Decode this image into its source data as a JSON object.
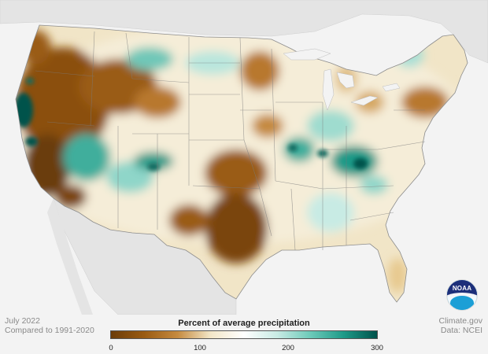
{
  "meta": {
    "date": "July 2022",
    "baseline": "Compared to 1991-2020",
    "source_site": "Climate.gov",
    "source_data": "Data: NCEI"
  },
  "legend": {
    "title": "Percent of average precipitation",
    "ticks": [
      "0",
      "100",
      "200",
      "300"
    ],
    "colors": [
      "#6b3c09",
      "#9a5b12",
      "#c58a3f",
      "#f3e7c8",
      "#ffffff",
      "#c8ebe4",
      "#6ccab9",
      "#1e9a88",
      "#00524b"
    ]
  },
  "logo": {
    "text": "NOAA"
  },
  "map": {
    "land_color": "#e6e6e6",
    "water_color": "#f3f3f3"
  }
}
